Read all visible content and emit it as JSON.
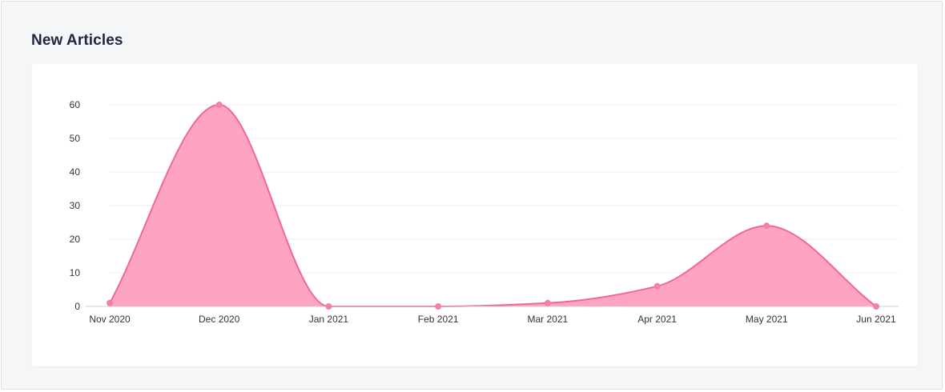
{
  "panel": {
    "title": "New Articles"
  },
  "colors": {
    "line": "#f0679a",
    "fill": "#ffa3c3",
    "point": "#f37fab",
    "grid": "#eeeeee",
    "axis": "#cccccc"
  },
  "chart_data": {
    "type": "area",
    "title": "New Articles",
    "xlabel": "",
    "ylabel": "",
    "categories": [
      "Nov 2020",
      "Dec 2020",
      "Jan 2021",
      "Feb 2021",
      "Mar 2021",
      "Apr 2021",
      "May 2021",
      "Jun 2021"
    ],
    "series": [
      {
        "values": [
          1,
          60,
          0,
          0,
          1,
          6,
          24,
          0
        ]
      }
    ],
    "ylim": [
      0,
      60
    ],
    "yticks": [
      0,
      10,
      20,
      30,
      40,
      50,
      60
    ],
    "grid": true,
    "legend": "none",
    "curve": "smooth"
  }
}
